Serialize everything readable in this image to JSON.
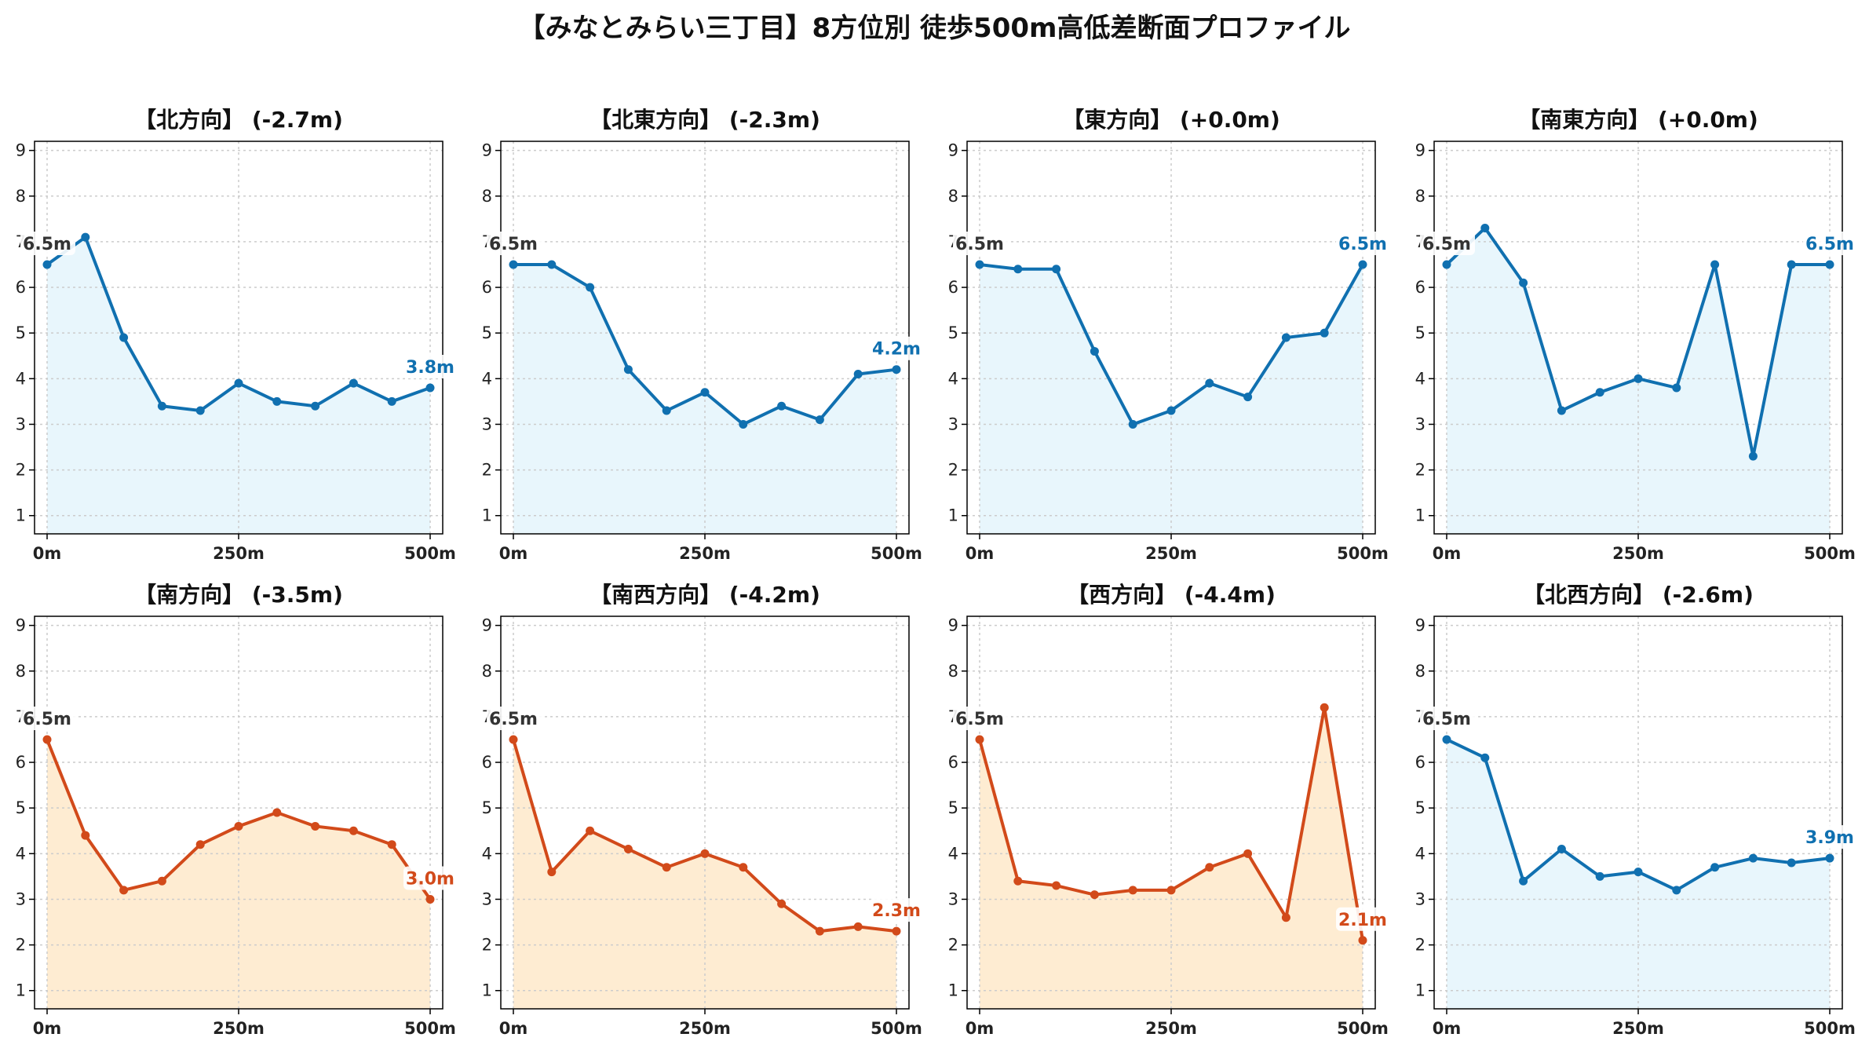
{
  "title": "【みなとみらい三丁目】8方位別 徒歩500m高低差断面プロファイル",
  "colors": {
    "up_line": "#1070b0",
    "up_fill": "#e8f6fc",
    "down_line": "#d24a1a",
    "down_fill": "#feecd2",
    "grid": "#cccccc",
    "start_label": "#333333"
  },
  "chart_data": [
    {
      "type": "area",
      "title": "【北方向】 (-2.7m)",
      "trend": "up",
      "x": [
        0,
        50,
        100,
        150,
        200,
        250,
        300,
        350,
        400,
        450,
        500
      ],
      "values": [
        6.5,
        7.1,
        4.9,
        3.4,
        3.3,
        3.9,
        3.5,
        3.4,
        3.9,
        3.5,
        3.8
      ],
      "start_label": "6.5m",
      "end_label": "3.8m",
      "xticks": [
        "0m",
        "250m",
        "500m"
      ],
      "yticks": [
        "1",
        "2",
        "3",
        "4",
        "5",
        "6",
        "7",
        "8",
        "9"
      ],
      "xlim": [
        0,
        500
      ],
      "ylim": [
        0.6,
        9.2
      ],
      "grid": true
    },
    {
      "type": "area",
      "title": "【北東方向】 (-2.3m)",
      "trend": "up",
      "x": [
        0,
        50,
        100,
        150,
        200,
        250,
        300,
        350,
        400,
        450,
        500
      ],
      "values": [
        6.5,
        6.5,
        6.0,
        4.2,
        3.3,
        3.7,
        3.0,
        3.4,
        3.1,
        4.1,
        4.2
      ],
      "start_label": "6.5m",
      "end_label": "4.2m",
      "xticks": [
        "0m",
        "250m",
        "500m"
      ],
      "yticks": [
        "1",
        "2",
        "3",
        "4",
        "5",
        "6",
        "7",
        "8",
        "9"
      ],
      "xlim": [
        0,
        500
      ],
      "ylim": [
        0.6,
        9.2
      ],
      "grid": true
    },
    {
      "type": "area",
      "title": "【東方向】 (+0.0m)",
      "trend": "up",
      "x": [
        0,
        50,
        100,
        150,
        200,
        250,
        300,
        350,
        400,
        450,
        500
      ],
      "values": [
        6.5,
        6.4,
        6.4,
        4.6,
        3.0,
        3.3,
        3.9,
        3.6,
        4.9,
        5.0,
        6.5
      ],
      "start_label": "6.5m",
      "end_label": "6.5m",
      "xticks": [
        "0m",
        "250m",
        "500m"
      ],
      "yticks": [
        "1",
        "2",
        "3",
        "4",
        "5",
        "6",
        "7",
        "8",
        "9"
      ],
      "xlim": [
        0,
        500
      ],
      "ylim": [
        0.6,
        9.2
      ],
      "grid": true
    },
    {
      "type": "area",
      "title": "【南東方向】 (+0.0m)",
      "trend": "up",
      "x": [
        0,
        50,
        100,
        150,
        200,
        250,
        300,
        350,
        400,
        450,
        500
      ],
      "values": [
        6.5,
        7.3,
        6.1,
        3.3,
        3.7,
        4.0,
        3.8,
        6.5,
        2.3,
        6.5,
        6.5
      ],
      "start_label": "6.5m",
      "end_label": "6.5m",
      "xticks": [
        "0m",
        "250m",
        "500m"
      ],
      "yticks": [
        "1",
        "2",
        "3",
        "4",
        "5",
        "6",
        "7",
        "8",
        "9"
      ],
      "xlim": [
        0,
        500
      ],
      "ylim": [
        0.6,
        9.2
      ],
      "grid": true
    },
    {
      "type": "area",
      "title": "【南方向】 (-3.5m)",
      "trend": "down",
      "x": [
        0,
        50,
        100,
        150,
        200,
        250,
        300,
        350,
        400,
        450,
        500
      ],
      "values": [
        6.5,
        4.4,
        3.2,
        3.4,
        4.2,
        4.6,
        4.9,
        4.6,
        4.5,
        4.2,
        3.0
      ],
      "start_label": "6.5m",
      "end_label": "3.0m",
      "xticks": [
        "0m",
        "250m",
        "500m"
      ],
      "yticks": [
        "1",
        "2",
        "3",
        "4",
        "5",
        "6",
        "7",
        "8",
        "9"
      ],
      "xlim": [
        0,
        500
      ],
      "ylim": [
        0.6,
        9.2
      ],
      "grid": true
    },
    {
      "type": "area",
      "title": "【南西方向】 (-4.2m)",
      "trend": "down",
      "x": [
        0,
        50,
        100,
        150,
        200,
        250,
        300,
        350,
        400,
        450,
        500
      ],
      "values": [
        6.5,
        3.6,
        4.5,
        4.1,
        3.7,
        4.0,
        3.7,
        2.9,
        2.3,
        2.4,
        2.3
      ],
      "start_label": "6.5m",
      "end_label": "2.3m",
      "xticks": [
        "0m",
        "250m",
        "500m"
      ],
      "yticks": [
        "1",
        "2",
        "3",
        "4",
        "5",
        "6",
        "7",
        "8",
        "9"
      ],
      "xlim": [
        0,
        500
      ],
      "ylim": [
        0.6,
        9.2
      ],
      "grid": true
    },
    {
      "type": "area",
      "title": "【西方向】 (-4.4m)",
      "trend": "down",
      "x": [
        0,
        50,
        100,
        150,
        200,
        250,
        300,
        350,
        400,
        450,
        500
      ],
      "values": [
        6.5,
        3.4,
        3.3,
        3.1,
        3.2,
        3.2,
        3.7,
        4.0,
        2.6,
        7.2,
        2.1
      ],
      "start_label": "6.5m",
      "end_label": "2.1m",
      "xticks": [
        "0m",
        "250m",
        "500m"
      ],
      "yticks": [
        "1",
        "2",
        "3",
        "4",
        "5",
        "6",
        "7",
        "8",
        "9"
      ],
      "xlim": [
        0,
        500
      ],
      "ylim": [
        0.6,
        9.2
      ],
      "grid": true
    },
    {
      "type": "area",
      "title": "【北西方向】 (-2.6m)",
      "trend": "up",
      "x": [
        0,
        50,
        100,
        150,
        200,
        250,
        300,
        350,
        400,
        450,
        500
      ],
      "values": [
        6.5,
        6.1,
        3.4,
        4.1,
        3.5,
        3.6,
        3.2,
        3.7,
        3.9,
        3.8,
        3.9
      ],
      "start_label": "6.5m",
      "end_label": "3.9m",
      "xticks": [
        "0m",
        "250m",
        "500m"
      ],
      "yticks": [
        "1",
        "2",
        "3",
        "4",
        "5",
        "6",
        "7",
        "8",
        "9"
      ],
      "xlim": [
        0,
        500
      ],
      "ylim": [
        0.6,
        9.2
      ],
      "grid": true
    }
  ]
}
